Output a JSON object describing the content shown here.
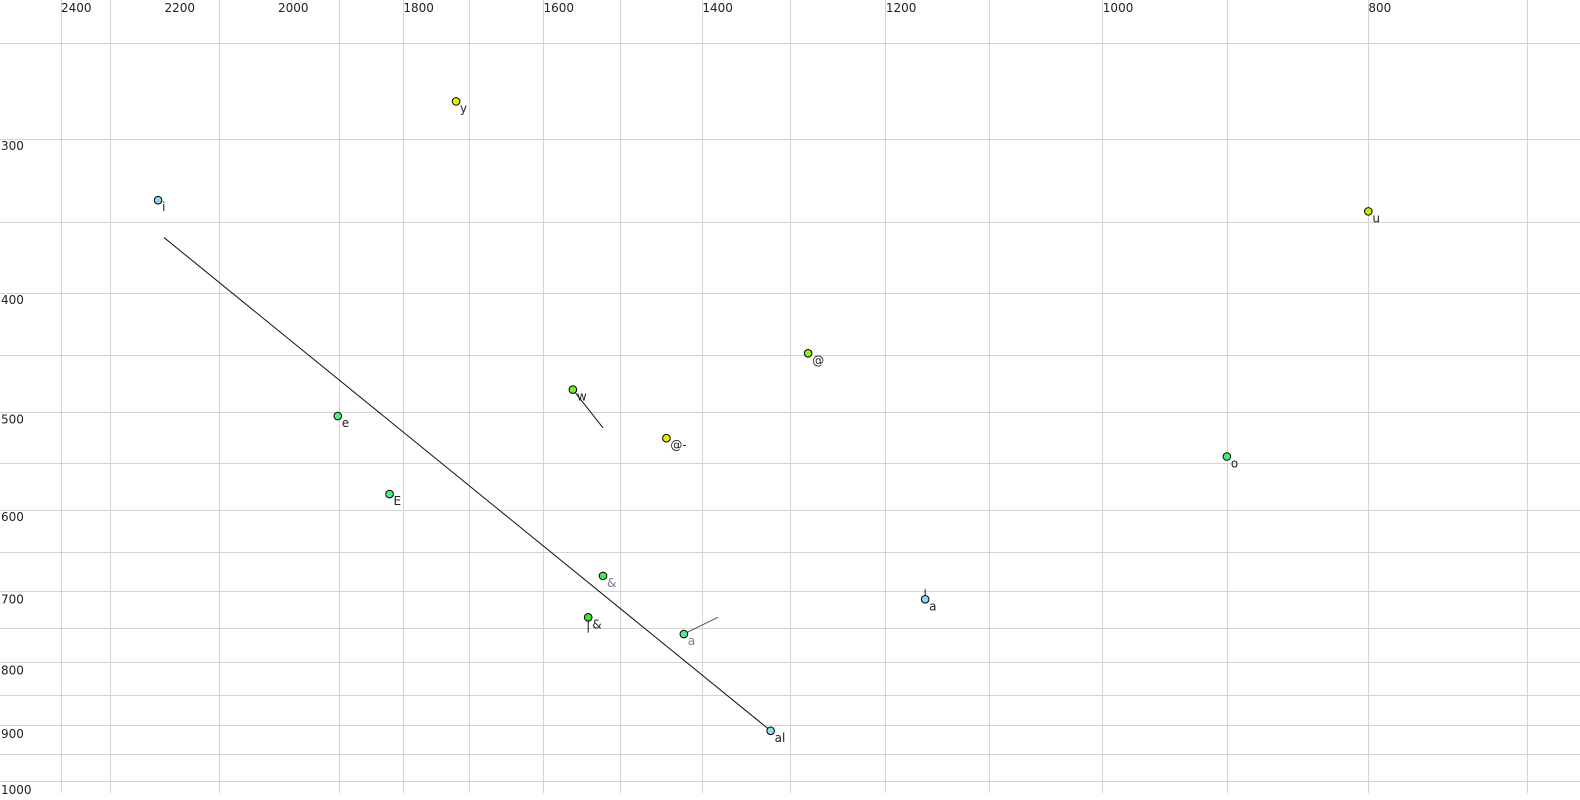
{
  "chart_data": {
    "type": "scatter",
    "title": "",
    "xlabel": "",
    "ylabel": "",
    "x_axis": {
      "position": "top",
      "reversed": true,
      "scale": "log",
      "range": [
        2500,
        700
      ],
      "ticks": [
        2400,
        2200,
        2000,
        1800,
        1600,
        1400,
        1200,
        1000,
        800
      ]
    },
    "y_axis": {
      "position": "left",
      "reversed": false,
      "scale": "log",
      "range": [
        250,
        1020
      ],
      "ticks": [
        300,
        400,
        500,
        600,
        700,
        800,
        900,
        1000
      ]
    },
    "grid": true,
    "points": [
      {
        "label": "y",
        "f2": 1722,
        "f1": 276,
        "color": "#e4f000",
        "label_color": "#222222"
      },
      {
        "label": "i",
        "f2": 2212,
        "f1": 332,
        "color": "#90d4f4",
        "label_color": "#222222"
      },
      {
        "label": "u",
        "f2": 800,
        "f1": 339,
        "color": "#b8f000",
        "label_color": "#222222"
      },
      {
        "label": "@",
        "f2": 1281,
        "f1": 442,
        "color": "#88f020",
        "label_color": "#222222"
      },
      {
        "label": "w",
        "f2": 1561,
        "f1": 473,
        "color": "#70f030",
        "label_color": "#222222",
        "trajectory_end": {
          "f2": 1522,
          "f1": 508
        }
      },
      {
        "label": "e",
        "f2": 1902,
        "f1": 497,
        "color": "#50f080",
        "label_color": "#222222"
      },
      {
        "label": "@-",
        "f2": 1443,
        "f1": 518,
        "color": "#e4f000",
        "label_color": "#222222"
      },
      {
        "label": "o",
        "f2": 901,
        "f1": 536,
        "color": "#40f070",
        "label_color": "#222222"
      },
      {
        "label": "E",
        "f2": 1821,
        "f1": 575,
        "color": "#50f080",
        "label_color": "#222222"
      },
      {
        "label": "&",
        "f2": 1522,
        "f1": 670,
        "color": "#48e850",
        "label_color": "#7a7a9a"
      },
      {
        "label": "a",
        "f2": 1161,
        "f1": 700,
        "color": "#90d4f4",
        "label_color": "#222222",
        "trajectory_end": {
          "f2": 1161,
          "f1": 687
        }
      },
      {
        "label": "&",
        "f2": 1541,
        "f1": 724,
        "color": "#40e040",
        "label_color": "#222222",
        "trajectory_end": {
          "f2": 1541,
          "f1": 745
        }
      },
      {
        "label": "a",
        "f2": 1422,
        "f1": 747,
        "color": "#50e8a0",
        "label_color": "#7a7a9a",
        "trajectory_end": {
          "f2": 1382,
          "f1": 724
        }
      },
      {
        "label": "al",
        "f2": 1322,
        "f1": 895,
        "color": "#90d8f4",
        "label_color": "#222222",
        "trajectory_start": {
          "f2": 2201,
          "f1": 356
        }
      }
    ]
  }
}
